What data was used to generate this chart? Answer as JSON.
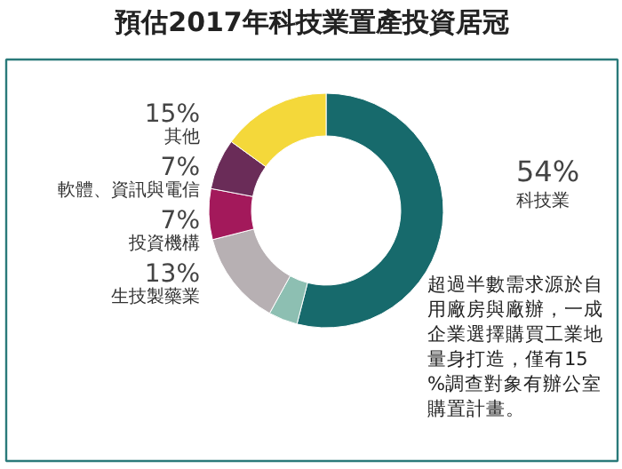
{
  "chart_data": {
    "type": "donut",
    "title": "預估2017年科技業置產投資居冠",
    "categories": [
      "科技業",
      null,
      "生技製藥業",
      "投資機構",
      "軟體、資訊與電信",
      "其他"
    ],
    "values": [
      54,
      4,
      13,
      7,
      7,
      15
    ],
    "value_labels": [
      "54%",
      null,
      "13%",
      "7%",
      "7%",
      "15%"
    ],
    "colors": [
      "#176a6c",
      "#8dbfb2",
      "#b7b0b3",
      "#a3195b",
      "#6a2c58",
      "#f4d83a"
    ],
    "annotations": [
      "超過半數需求源於自用廠房與廠辦，一成企業選擇購買工業地量身打造，僅有15%調查對象有辦公室購置計畫。"
    ]
  }
}
